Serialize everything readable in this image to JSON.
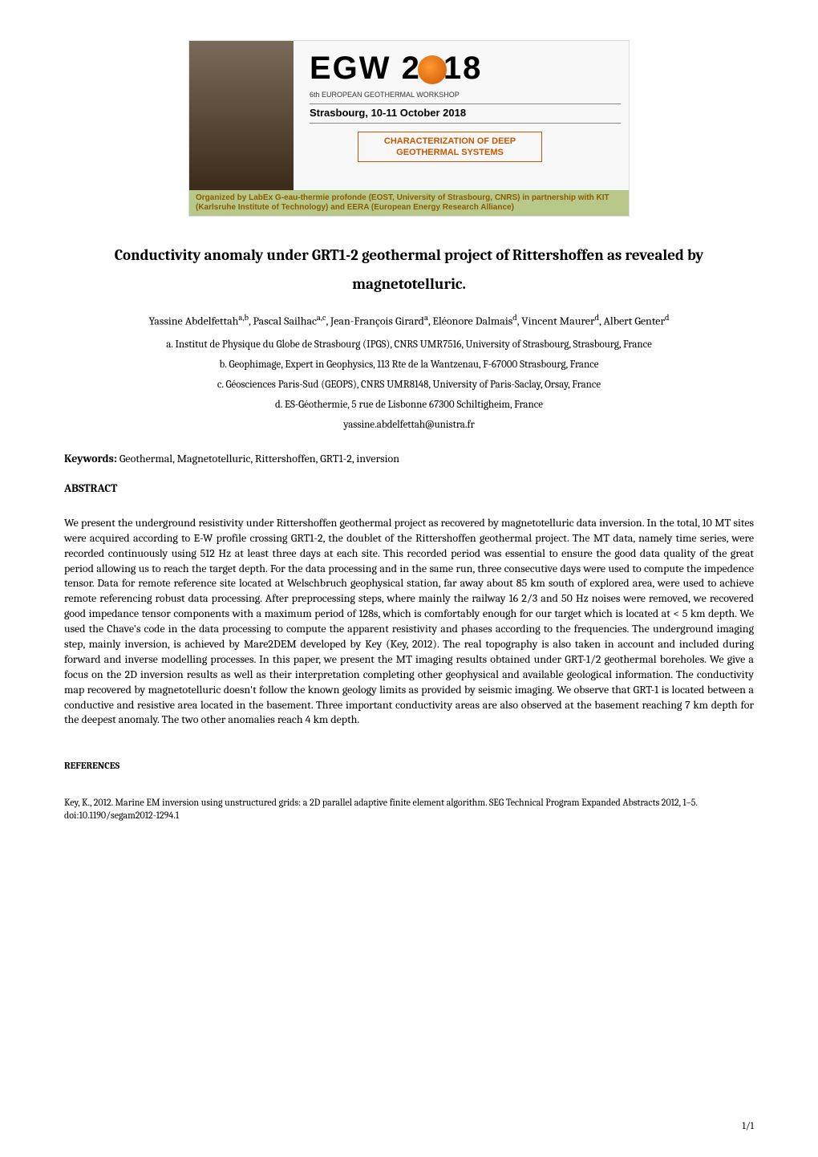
{
  "header_banner": {
    "logo_text": "EGW 2018",
    "subtitle": "6th EUROPEAN GEOTHERMAL WORKSHOP",
    "location": "Strasbourg, 10-11 October 2018",
    "char_line1": "CHARACTERIZATION OF DEEP",
    "char_line2": "GEOTHERMAL SYSTEMS",
    "organized": "Organized by LabEx G-eau-thermie profonde (EOST, University of Strasbourg, CNRS) in partnership with KIT (Karlsruhe Institute of Technology) and EERA (European Energy Research Alliance)",
    "colors": {
      "accent_orange": "#cc5500",
      "bar_green": "#b8c88a",
      "bar_text": "#8b5a00",
      "border_gray": "#888888"
    }
  },
  "paper": {
    "title": "Conductivity anomaly under GRT1-2 geothermal project of Rittershoffen as revealed by magnetotelluric.",
    "authors_html": "Yassine Abdelfettah<sup>a,b</sup>, Pascal Sailhac<sup>a,c</sup>, Jean-François Girard<sup>a</sup>, Eléonore Dalmais<sup>d</sup>, Vincent Maurer<sup>d</sup>, Albert Genter<sup>d</sup>",
    "affiliations": [
      "a. Institut de Physique du Globe de Strasbourg (IPGS), CNRS UMR7516, University of Strasbourg, Strasbourg, France",
      "b. Geophimage, Expert in Geophysics, 113 Rte de la Wantzenau, F-67000 Strasbourg, France",
      "c. Géosciences Paris-Sud (GEOPS), CNRS UMR8148, University of Paris-Saclay, Orsay, France",
      "d. ES-Géothermie, 5 rue de Lisbonne 67300 Schiltigheim, France"
    ],
    "email": "yassine.abdelfettah@unistra.fr",
    "keywords_label": "Keywords:",
    "keywords": "Geothermal, Magnetotelluric, Rittershoffen, GRT1-2, inversion",
    "abstract_heading": "ABSTRACT",
    "abstract": "We present the underground resistivity under Rittershoffen geothermal project as recovered by magnetotelluric data inversion. In the total, 10 MT sites were acquired according to E-W profile crossing GRT1-2, the doublet of the Rittershoffen geothermal project. The MT data, namely time series, were recorded continuously using 512 Hz at least three days at each site. This recorded period was essential to ensure the good data quality of the great period allowing us to reach the target depth. For the data processing and in the same run, three consecutive days were used to compute the impedence tensor. Data for remote reference site located at Welschbruch geophysical station, far away about 85 km south of explored area, were used to achieve remote referencing robust data processing. After preprocessing steps, where mainly the railway 16 2/3 and 50 Hz noises were removed, we recovered good impedance tensor components with a maximum period of 128s, which is comfortably enough for our target which is located at < 5 km depth. We used the Chave's code in the data processing to compute the apparent resistivity and phases according to the frequencies. The underground imaging step, mainly inversion, is achieved by Mare2DEM developed by Key (Key, 2012). The real topography is also taken in account and included during forward and inverse modelling processes. In this paper, we present the MT imaging results obtained under GRT-1/2 geothermal boreholes. We give a focus on the 2D inversion results as well as their interpretation completing other geophysical and available geological information. The conductivity map recovered by magnetotelluric doesn't follow the known geology limits as provided by seismic imaging. We observe that GRT-1 is located between a conductive and resistive area located in the basement. Three important conductivity areas are also observed at the basement reaching 7 km depth for the deepest anomaly. The two other anomalies reach 4 km depth.",
    "references_heading": "REFERENCES",
    "references": [
      "Key, K., 2012. Marine EM inversion using unstructured grids: a 2D parallel adaptive finite element algorithm. SEG Technical Program Expanded Abstracts 2012, 1–5. doi:10.1190/segam2012-1294.1"
    ]
  },
  "page_number": "1/1"
}
